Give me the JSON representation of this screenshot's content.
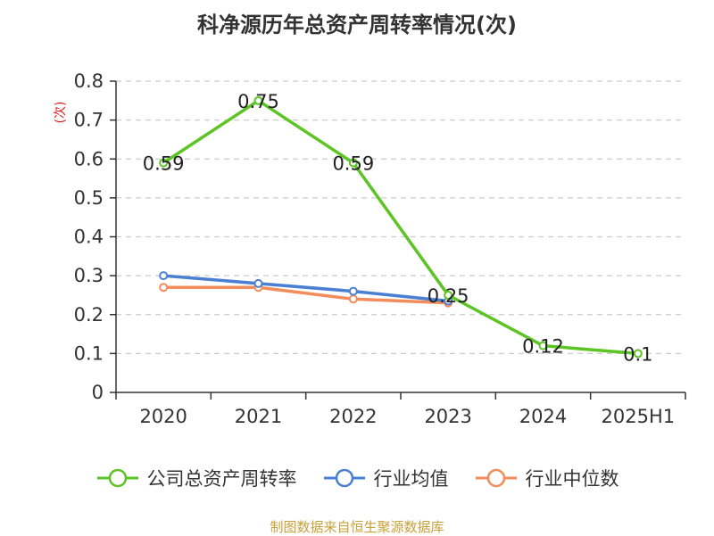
{
  "chart_data": {
    "type": "line",
    "title": "科净源历年总资产周转率情况(次)",
    "ylabel": "(次)",
    "xlabel": "",
    "categories": [
      "2020",
      "2021",
      "2022",
      "2023",
      "2024",
      "2025H1"
    ],
    "ylim": [
      0,
      0.8
    ],
    "yticks": [
      "0",
      "0.1",
      "0.2",
      "0.3",
      "0.4",
      "0.5",
      "0.6",
      "0.7",
      "0.8"
    ],
    "grid": true,
    "legend_position": "bottom",
    "series": [
      {
        "name": "公司总资产周转率",
        "color": "#5cc524",
        "values": [
          0.59,
          0.75,
          0.59,
          0.25,
          0.12,
          0.1
        ],
        "labels": [
          "0.59",
          "0.75",
          "0.59",
          "0.25",
          "0.12",
          "0.1"
        ]
      },
      {
        "name": "行业均值",
        "color": "#4a7fd4",
        "values": [
          0.3,
          0.28,
          0.26,
          0.235,
          null,
          null
        ]
      },
      {
        "name": "行业中位数",
        "color": "#f28c5a",
        "values": [
          0.27,
          0.27,
          0.24,
          0.23,
          null,
          null
        ]
      }
    ]
  },
  "source": "制图数据来自恒生聚源数据库"
}
